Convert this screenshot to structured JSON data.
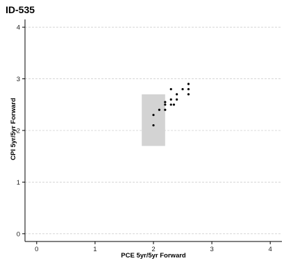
{
  "chart_data": {
    "type": "scatter",
    "title": "ID-535",
    "xlabel": "PCE 5yr/5yr Forward",
    "ylabel": "CPI 5yr/5yr Forward",
    "xlim": [
      -0.2,
      4.2
    ],
    "ylim": [
      -0.15,
      4.15
    ],
    "x_ticks": [
      0,
      1,
      2,
      3,
      4
    ],
    "y_ticks": [
      0,
      1,
      2,
      3,
      4
    ],
    "grid": "horizontal dashed",
    "shaded_region": {
      "x": [
        1.8,
        2.2
      ],
      "y": [
        1.7,
        2.7
      ],
      "color": "#d3d3d3"
    },
    "points": [
      {
        "x": 2.0,
        "y": 2.1
      },
      {
        "x": 2.0,
        "y": 2.3
      },
      {
        "x": 2.1,
        "y": 2.4
      },
      {
        "x": 2.2,
        "y": 2.4
      },
      {
        "x": 2.2,
        "y": 2.5
      },
      {
        "x": 2.2,
        "y": 2.55
      },
      {
        "x": 2.3,
        "y": 2.5
      },
      {
        "x": 2.3,
        "y": 2.6
      },
      {
        "x": 2.3,
        "y": 2.8
      },
      {
        "x": 2.35,
        "y": 2.5
      },
      {
        "x": 2.4,
        "y": 2.6
      },
      {
        "x": 2.4,
        "y": 2.7
      },
      {
        "x": 2.5,
        "y": 2.8
      },
      {
        "x": 2.6,
        "y": 2.7
      },
      {
        "x": 2.6,
        "y": 2.8
      },
      {
        "x": 2.6,
        "y": 2.9
      }
    ]
  }
}
